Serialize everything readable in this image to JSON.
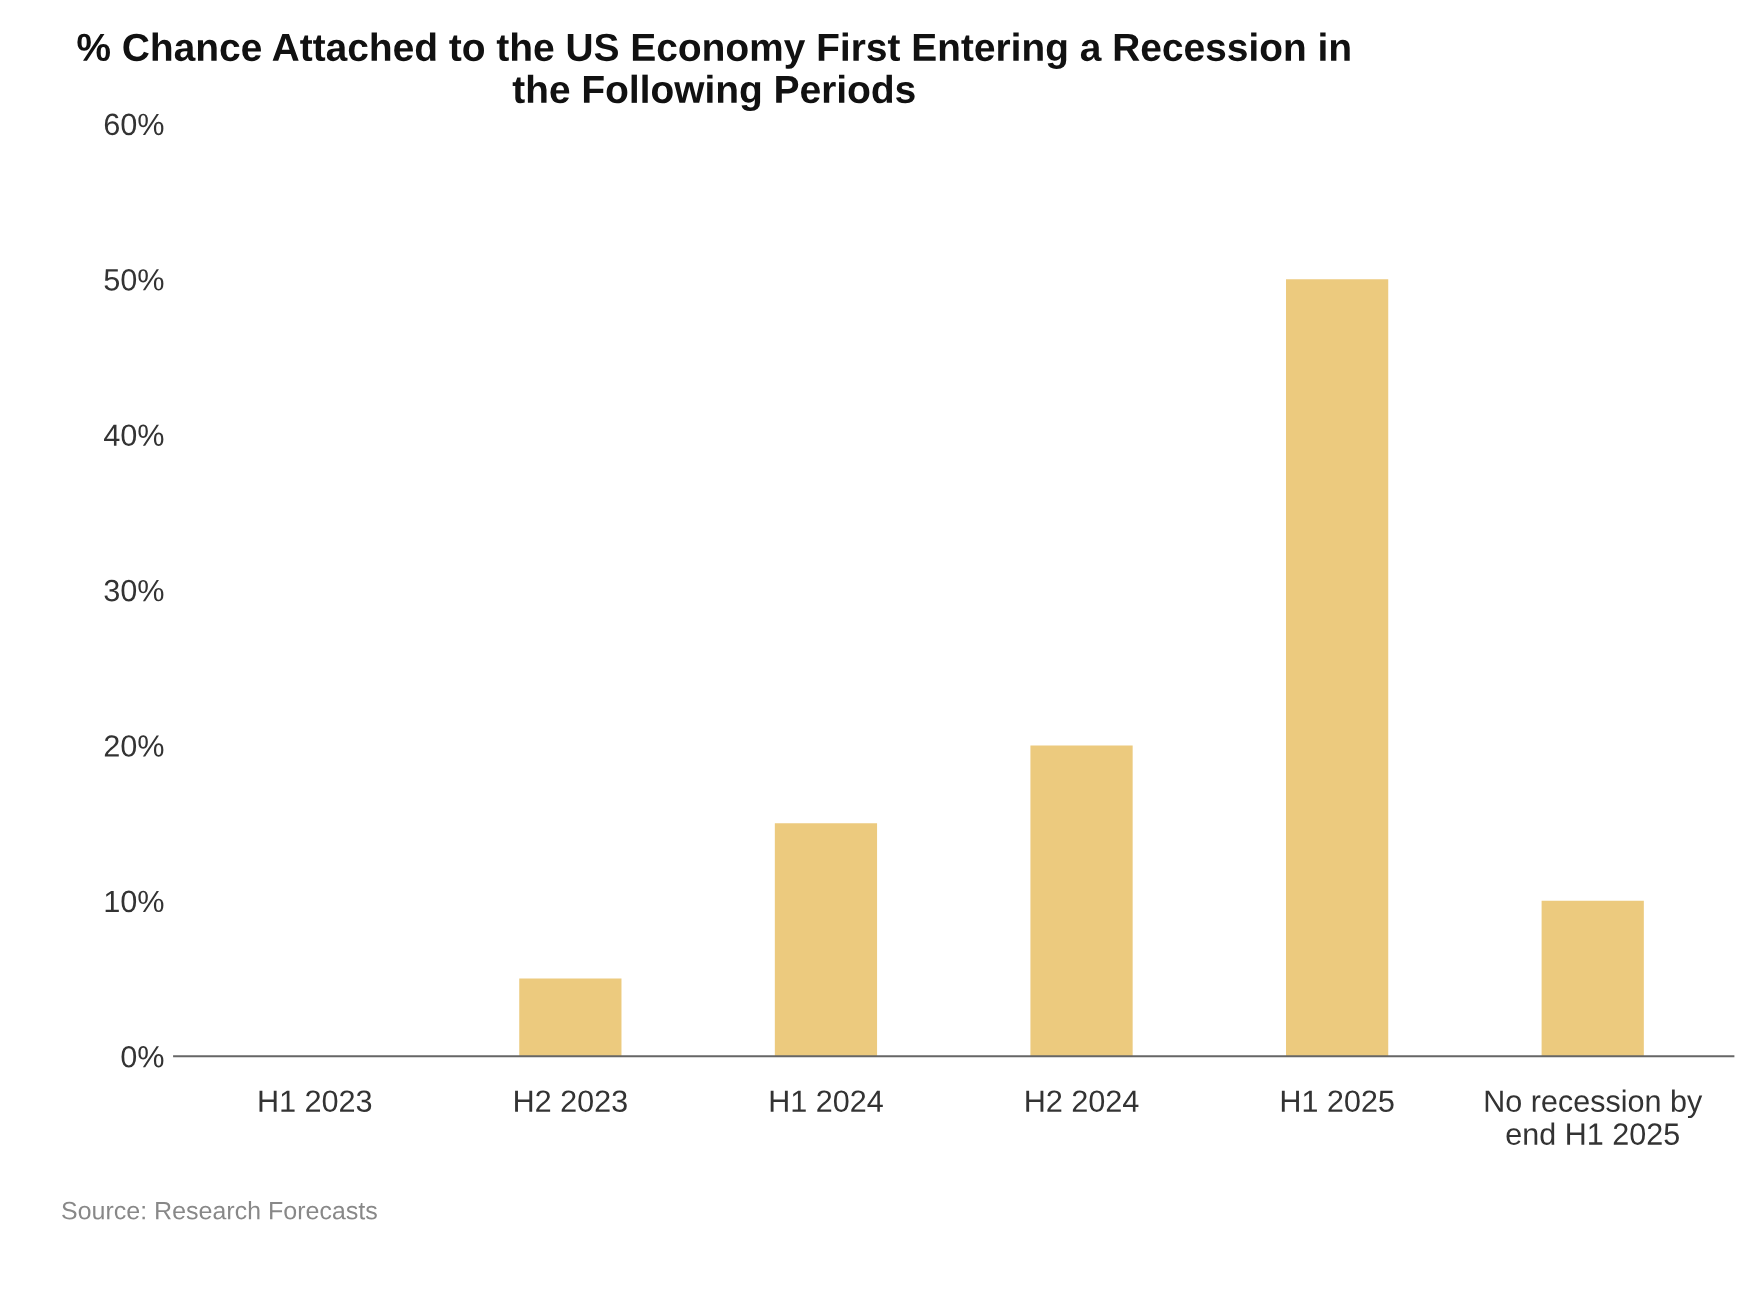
{
  "chart_data": {
    "type": "bar",
    "title": "% Chance Attached to the US Economy First Entering a Recession in\nthe Following Periods",
    "categories": [
      "H1 2023",
      "H2 2023",
      "H1 2024",
      "H2 2024",
      "H1 2025",
      "No recession by\nend H1 2025"
    ],
    "values": [
      0,
      5,
      15,
      20,
      50,
      10
    ],
    "color": "#ecca7e",
    "ylim": [
      0,
      60
    ],
    "yticks": [
      {
        "value": 0,
        "label": "0%"
      },
      {
        "value": 10,
        "label": "10%"
      },
      {
        "value": 20,
        "label": "20%"
      },
      {
        "value": 30,
        "label": "30%"
      },
      {
        "value": 40,
        "label": "40%"
      },
      {
        "value": 50,
        "label": "50%"
      },
      {
        "value": 60,
        "label": "60%"
      }
    ],
    "grid": false,
    "annotations": [
      "Source: Research Forecasts"
    ]
  }
}
